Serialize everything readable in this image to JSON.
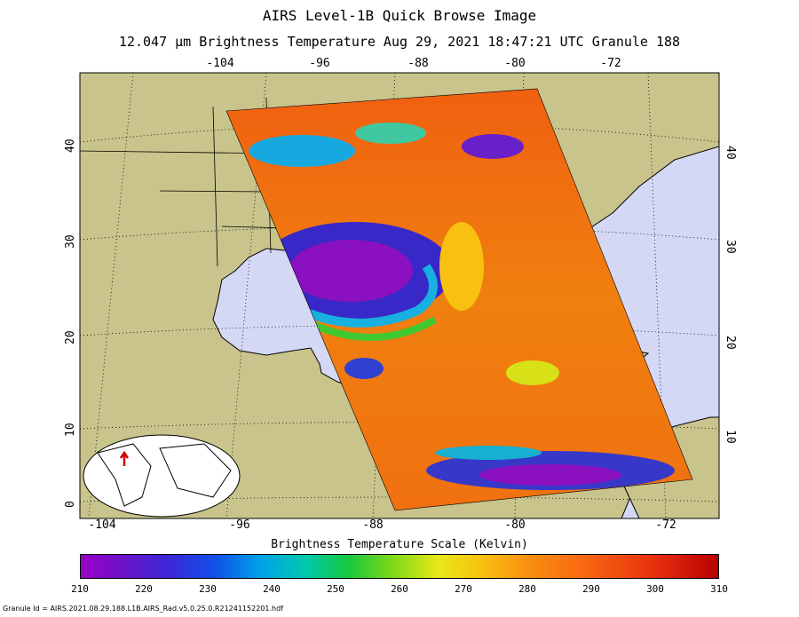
{
  "title": "AIRS Level-1B Quick Browse Image",
  "subtitle": "12.047 μm Brightness Temperature   Aug 29, 2021 18:47:21 UTC  Granule 188",
  "axes": {
    "top_ticks": [
      "-104",
      "-96",
      "-88",
      "-80",
      "-72"
    ],
    "bottom_ticks": [
      "-104",
      "-96",
      "-88",
      "-80",
      "-72"
    ],
    "left_ticks": [
      "40",
      "30",
      "20",
      "10",
      "0"
    ],
    "right_ticks": [
      "40",
      "30",
      "20",
      "10"
    ]
  },
  "colors": {
    "ocean": "#d4d8f4",
    "land": "#c8c48c",
    "coast": "#000000"
  },
  "colorbar": {
    "title": "Brightness Temperature Scale (Kelvin)",
    "labels": [
      "210",
      "220",
      "230",
      "240",
      "250",
      "260",
      "270",
      "280",
      "290",
      "300",
      "310"
    ],
    "range": [
      210,
      310
    ]
  },
  "inset": {
    "icon": "globe-locator-icon"
  },
  "footer": {
    "granule_id": "Granule Id = AIRS.2021.08.29.188.L1B.AIRS_Rad.v5.0.25.0.R21241152201.hdf"
  }
}
